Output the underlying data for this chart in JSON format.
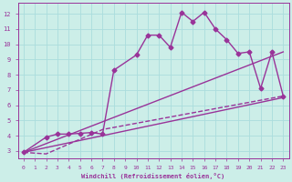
{
  "xlabel": "Windchill (Refroidissement éolien,°C)",
  "bg_color": "#cceee8",
  "line_color": "#993399",
  "grid_color": "#aadddd",
  "xlim": [
    -0.5,
    23.5
  ],
  "ylim": [
    2.5,
    12.7
  ],
  "xticks": [
    0,
    1,
    2,
    3,
    4,
    5,
    6,
    7,
    8,
    9,
    10,
    11,
    12,
    13,
    14,
    15,
    16,
    17,
    18,
    19,
    20,
    21,
    22,
    23
  ],
  "yticks": [
    3,
    4,
    5,
    6,
    7,
    8,
    9,
    10,
    11,
    12
  ],
  "series": [
    {
      "x": [
        0,
        2,
        3,
        4,
        5,
        6,
        7,
        8,
        10,
        11,
        12,
        13,
        14,
        15,
        16,
        17,
        18,
        19,
        20,
        21,
        22,
        23
      ],
      "y": [
        2.9,
        3.9,
        4.1,
        4.1,
        4.15,
        4.2,
        4.1,
        8.3,
        9.3,
        10.6,
        10.6,
        9.8,
        12.1,
        11.5,
        12.1,
        11.0,
        10.3,
        9.4,
        9.5,
        7.1,
        9.5,
        6.6
      ],
      "marker": "D",
      "markersize": 2.5,
      "linewidth": 1.0,
      "linestyle": "-"
    },
    {
      "x": [
        0,
        23
      ],
      "y": [
        2.9,
        6.5
      ],
      "marker": null,
      "markersize": 0,
      "linewidth": 1.0,
      "linestyle": "-"
    },
    {
      "x": [
        0,
        23
      ],
      "y": [
        2.9,
        9.5
      ],
      "marker": null,
      "markersize": 0,
      "linewidth": 1.0,
      "linestyle": "-"
    },
    {
      "x": [
        0,
        2,
        7,
        23
      ],
      "y": [
        2.9,
        2.8,
        4.4,
        6.6
      ],
      "marker": null,
      "markersize": 0,
      "linewidth": 1.0,
      "linestyle": "--"
    }
  ]
}
